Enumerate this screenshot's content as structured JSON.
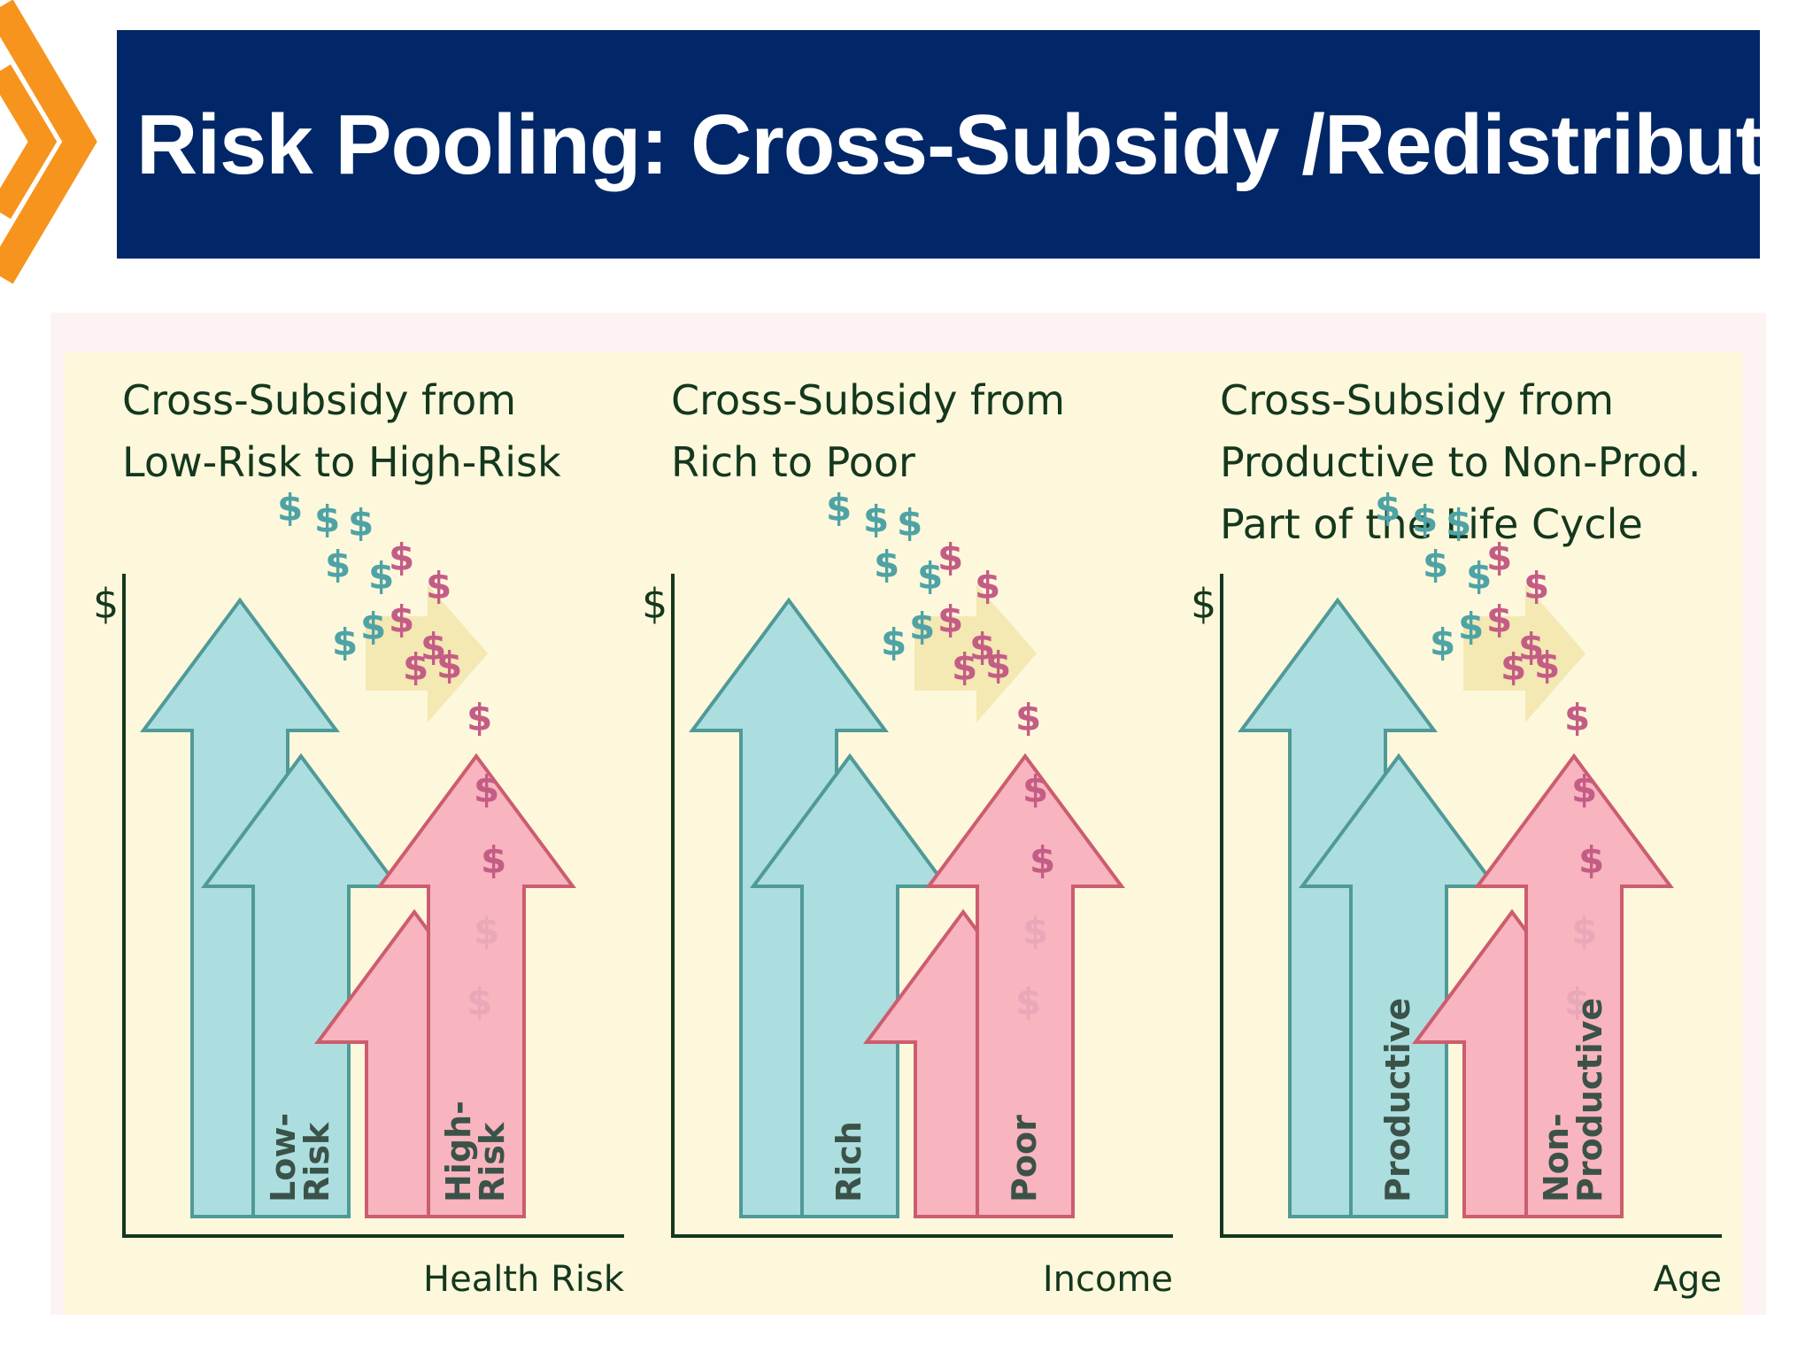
{
  "slide": {
    "title": "Risk Pooling: Cross-Subsidy /Redistribution",
    "colors": {
      "title_bar": "#012768",
      "chevron": "#f7941d",
      "panel_background": "#fdf8dc",
      "arrow_teal": "#acdedf",
      "arrow_pink": "#f8b4bf",
      "text_dark_green": "#14381e"
    }
  },
  "panels": [
    {
      "title_lines": [
        "Cross-Subsidy from",
        "Low-Risk to High-Risk"
      ],
      "y_axis_label": "$",
      "x_axis_label": "Health Risk",
      "source_label": [
        "Low-",
        "Risk"
      ],
      "target_label": [
        "High-",
        "Risk"
      ]
    },
    {
      "title_lines": [
        "Cross-Subsidy from",
        "Rich to Poor"
      ],
      "y_axis_label": "$",
      "x_axis_label": "Income",
      "source_label": [
        "Rich"
      ],
      "target_label": [
        "Poor"
      ]
    },
    {
      "title_lines": [
        "Cross-Subsidy from",
        "Productive to Non-Prod.",
        "Part of the Life Cycle"
      ],
      "y_axis_label": "$",
      "x_axis_label": "Age",
      "source_label": [
        "Productive"
      ],
      "target_label": [
        "Non-",
        "Productive"
      ]
    }
  ],
  "icons": {
    "money": "dollar-sign-icon",
    "transfer": "transfer-arrow-icon"
  }
}
